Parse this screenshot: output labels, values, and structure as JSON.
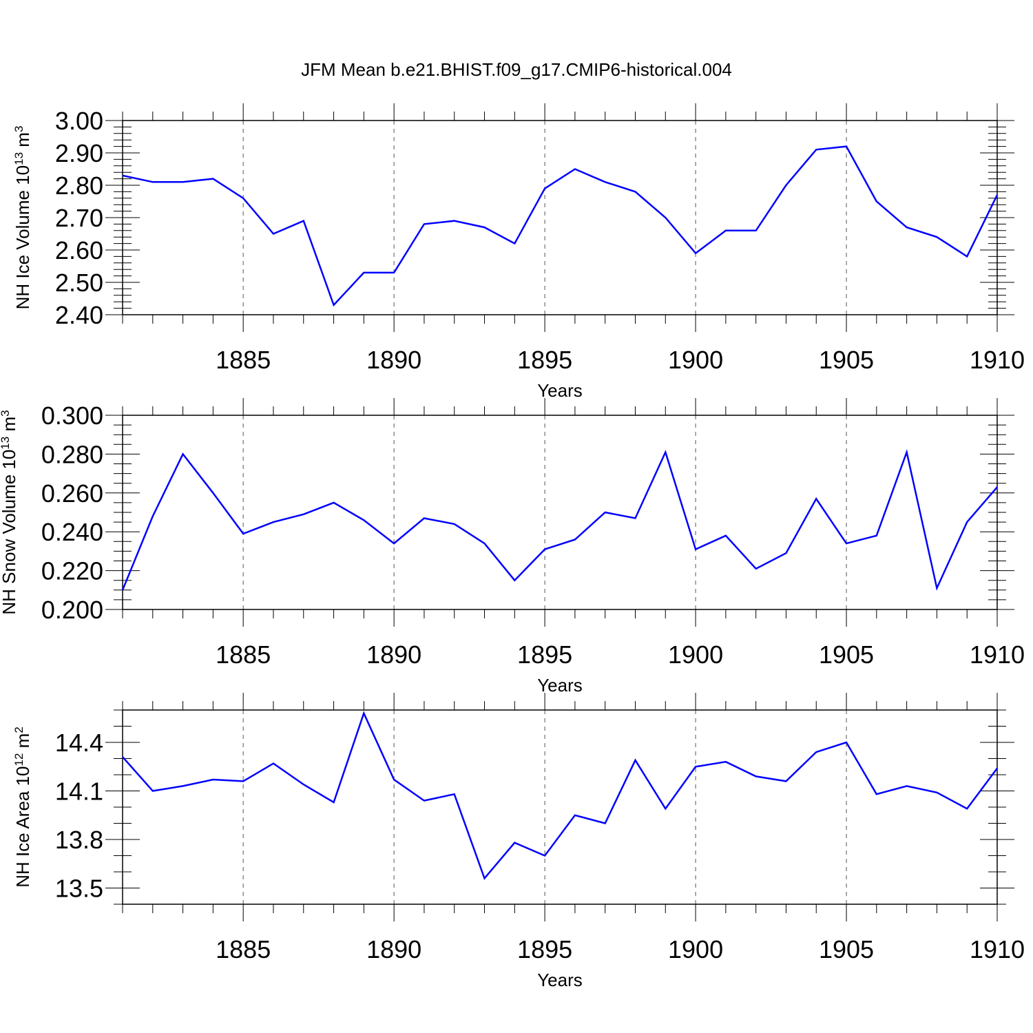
{
  "title": "JFM Mean b.e21.BHIST.f09_g17.CMIP6-historical.004",
  "colors": {
    "line": "#0000ff",
    "axis": "#000000",
    "grid": "#555555"
  },
  "chart_data": [
    {
      "type": "line",
      "name": "ice-volume",
      "ylabel": {
        "text": "NH Ice Volume 10",
        "exp": "13",
        "unit": " m",
        "unitexp": "3"
      },
      "xlabel": "Years",
      "xlim": [
        1881,
        1910
      ],
      "xticks": [
        1885,
        1890,
        1895,
        1900,
        1905,
        1910
      ],
      "ylim": [
        2.4,
        3.0
      ],
      "yticks": [
        2.4,
        2.5,
        2.6,
        2.7,
        2.8,
        2.9,
        3.0
      ],
      "ytick_labels": [
        "2.40",
        "2.50",
        "2.60",
        "2.70",
        "2.80",
        "2.90",
        "3.00"
      ],
      "yminor": 0.02,
      "x": [
        1881,
        1882,
        1883,
        1884,
        1885,
        1886,
        1887,
        1888,
        1889,
        1890,
        1891,
        1892,
        1893,
        1894,
        1895,
        1896,
        1897,
        1898,
        1899,
        1900,
        1901,
        1902,
        1903,
        1904,
        1905,
        1906,
        1907,
        1908,
        1909,
        1910
      ],
      "y": [
        2.83,
        2.81,
        2.81,
        2.82,
        2.76,
        2.65,
        2.69,
        2.43,
        2.53,
        2.53,
        2.68,
        2.69,
        2.67,
        2.62,
        2.79,
        2.85,
        2.81,
        2.78,
        2.7,
        2.59,
        2.66,
        2.66,
        2.8,
        2.91,
        2.92,
        2.75,
        2.67,
        2.64,
        2.58,
        2.77
      ]
    },
    {
      "type": "line",
      "name": "snow-volume",
      "ylabel": {
        "text": "NH Snow Volume 10",
        "exp": "13",
        "unit": " m",
        "unitexp": "3"
      },
      "xlabel": "Years",
      "xlim": [
        1881,
        1910
      ],
      "xticks": [
        1885,
        1890,
        1895,
        1900,
        1905,
        1910
      ],
      "ylim": [
        0.2,
        0.3
      ],
      "yticks": [
        0.2,
        0.22,
        0.24,
        0.26,
        0.28,
        0.3
      ],
      "ytick_labels": [
        "0.200",
        "0.220",
        "0.240",
        "0.260",
        "0.280",
        "0.300"
      ],
      "yminor": 0.005,
      "x": [
        1881,
        1882,
        1883,
        1884,
        1885,
        1886,
        1887,
        1888,
        1889,
        1890,
        1891,
        1892,
        1893,
        1894,
        1895,
        1896,
        1897,
        1898,
        1899,
        1900,
        1901,
        1902,
        1903,
        1904,
        1905,
        1906,
        1907,
        1908,
        1909,
        1910
      ],
      "y": [
        0.21,
        0.248,
        0.28,
        0.26,
        0.239,
        0.245,
        0.249,
        0.255,
        0.246,
        0.234,
        0.247,
        0.244,
        0.234,
        0.215,
        0.231,
        0.236,
        0.25,
        0.247,
        0.281,
        0.231,
        0.238,
        0.221,
        0.229,
        0.257,
        0.234,
        0.238,
        0.281,
        0.211,
        0.245,
        0.263
      ]
    },
    {
      "type": "line",
      "name": "ice-area",
      "ylabel": {
        "text": "NH Ice Area 10",
        "exp": "12",
        "unit": " m",
        "unitexp": "2"
      },
      "xlabel": "Years",
      "xlim": [
        1881,
        1910
      ],
      "xticks": [
        1885,
        1890,
        1895,
        1900,
        1905,
        1910
      ],
      "ylim": [
        13.4,
        14.6
      ],
      "yticks": [
        13.5,
        13.8,
        14.1,
        14.4
      ],
      "ytick_labels": [
        "13.5",
        "13.8",
        "14.1",
        "14.4"
      ],
      "yminor": 0.1,
      "x": [
        1881,
        1882,
        1883,
        1884,
        1885,
        1886,
        1887,
        1888,
        1889,
        1890,
        1891,
        1892,
        1893,
        1894,
        1895,
        1896,
        1897,
        1898,
        1899,
        1900,
        1901,
        1902,
        1903,
        1904,
        1905,
        1906,
        1907,
        1908,
        1909,
        1910
      ],
      "y": [
        14.31,
        14.1,
        14.13,
        14.17,
        14.16,
        14.27,
        14.14,
        14.03,
        14.58,
        14.17,
        14.04,
        14.08,
        13.56,
        13.78,
        13.7,
        13.95,
        13.9,
        14.29,
        13.99,
        14.25,
        14.28,
        14.19,
        14.16,
        14.34,
        14.4,
        14.08,
        14.13,
        14.09,
        13.99,
        14.24
      ]
    }
  ]
}
